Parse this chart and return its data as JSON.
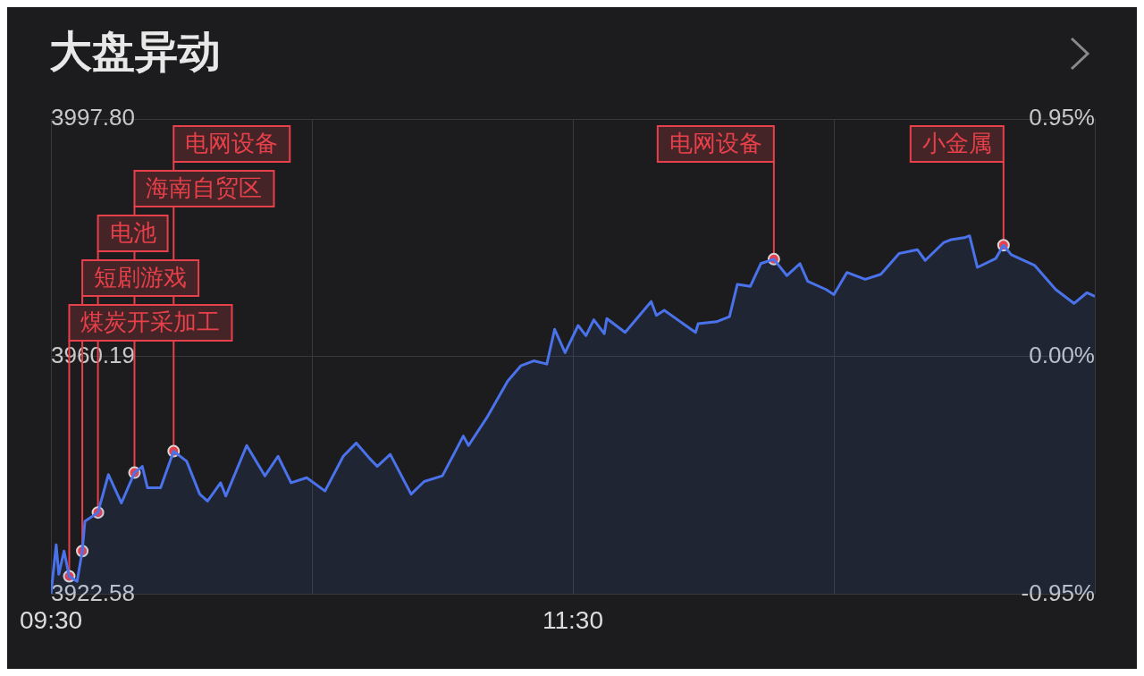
{
  "chart_data": {
    "type": "area",
    "title": "大盘异动",
    "xlim": [
      9.5,
      13.5
    ],
    "xticks": [
      {
        "value": 9.5,
        "label": "09:30"
      },
      {
        "value": 10.5,
        "label": null
      },
      {
        "value": 11.5,
        "label": "11:30"
      },
      {
        "value": 12.5,
        "label": null
      },
      {
        "value": 13.5,
        "label": null
      }
    ],
    "ylim": [
      3922.58,
      3997.8
    ],
    "yticks": [
      3922.58,
      3960.19,
      {
        "value": 3997.8,
        "label": "3997.80"
      }
    ],
    "y2lim": [
      -0.95,
      0.95
    ],
    "y2ticks": [
      {
        "value": -0.95,
        "label": "-0.95%"
      },
      {
        "value": 0,
        "label": "0.00%"
      },
      {
        "value": 0.95,
        "label": "0.95%"
      }
    ],
    "grid": true,
    "x": [
      9.5,
      9.52,
      9.53,
      9.55,
      9.57,
      9.6,
      9.62,
      9.63,
      9.68,
      9.72,
      9.77,
      9.82,
      9.85,
      9.87,
      9.92,
      9.97,
      10.02,
      10.07,
      10.1,
      10.15,
      10.17,
      10.25,
      10.32,
      10.37,
      10.42,
      10.48,
      10.55,
      10.62,
      10.67,
      10.72,
      10.75,
      10.8,
      10.88,
      10.93,
      11,
      11.08,
      11.1,
      11.17,
      11.25,
      11.3,
      11.35,
      11.4,
      11.43,
      11.47,
      11.52,
      11.55,
      11.58,
      11.62,
      11.63,
      11.7,
      11.8,
      11.82,
      11.85,
      11.97,
      11.98,
      12.05,
      12.1,
      12.13,
      12.18,
      12.22,
      12.27,
      12.32,
      12.37,
      12.4,
      12.47,
      12.5,
      12.55,
      12.62,
      12.68,
      12.75,
      12.82,
      12.85,
      12.92,
      12.95,
      13,
      13.02,
      13.05,
      13.12,
      13.15,
      13.18,
      13.27,
      13.35,
      13.42,
      13.47,
      13.5
    ],
    "series": [
      {
        "color": "#4a72ea",
        "values": [
          3922.6,
          3930.4,
          3925.7,
          3929.4,
          3925.4,
          3924.6,
          3929.4,
          3934.1,
          3935.5,
          3941.5,
          3937.0,
          3941.8,
          3942.8,
          3939.4,
          3939.4,
          3945.2,
          3943.6,
          3938.4,
          3937.3,
          3940.2,
          3938.1,
          3946.1,
          3941.3,
          3944.4,
          3940.2,
          3941.0,
          3938.9,
          3944.4,
          3946.5,
          3944.1,
          3942.8,
          3944.7,
          3938.4,
          3940.4,
          3941.3,
          3947.6,
          3946.1,
          3950.5,
          3956.3,
          3958.7,
          3959.5,
          3959.0,
          3964.5,
          3960.8,
          3965.1,
          3963.5,
          3966.0,
          3963.8,
          3966.2,
          3964.0,
          3968.9,
          3966.7,
          3967.5,
          3964.0,
          3965.4,
          3965.7,
          3966.5,
          3971.6,
          3971.3,
          3974.9,
          3975.6,
          3973.0,
          3974.9,
          3972.1,
          3970.8,
          3970.0,
          3973.5,
          3972.4,
          3973.2,
          3976.5,
          3977.1,
          3975.4,
          3978.2,
          3978.7,
          3979.0,
          3979.3,
          3974.3,
          3975.7,
          3977.8,
          3976.3,
          3974.6,
          3970.8,
          3968.6,
          3970.3,
          3969.7
        ]
      },
      {
        "type": "scatter",
        "color": "#e8404a",
        "x": [
          9.57,
          9.62,
          9.68,
          9.82,
          9.97,
          12.27,
          13.15
        ],
        "values": [
          3925.4,
          3929.4,
          3935.5,
          3941.8,
          3945.2,
          3975.6,
          3977.8
        ]
      }
    ],
    "annotations": [
      {
        "text": "煤炭开采加工",
        "x": 9.57,
        "y": 3925.4
      },
      {
        "text": "短剧游戏",
        "x": 9.62,
        "y": 3929.4
      },
      {
        "text": "电池",
        "x": 9.68,
        "y": 3935.5
      },
      {
        "text": "海南自贸区",
        "x": 9.82,
        "y": 3941.8
      },
      {
        "text": "电网设备",
        "x": 9.97,
        "y": 3945.2
      },
      {
        "text": "电网设备",
        "x": 12.27,
        "y": 3975.6
      },
      {
        "text": "小金属",
        "x": 13.15,
        "y": 3977.8
      }
    ]
  }
}
